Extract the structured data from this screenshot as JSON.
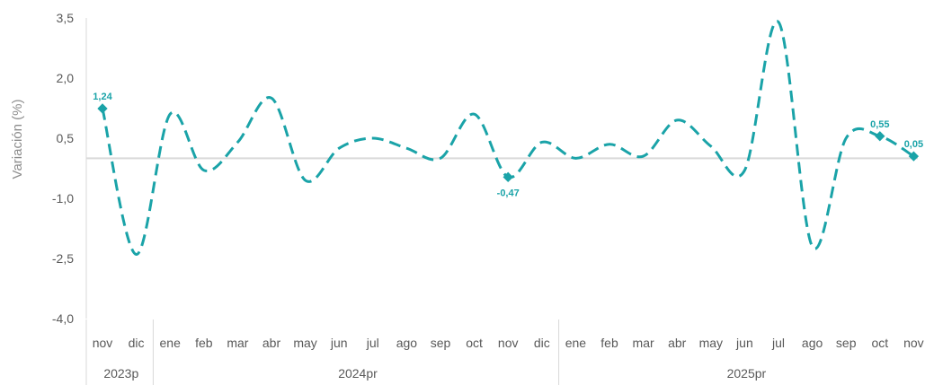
{
  "chart_data": {
    "type": "line",
    "ylabel": "Variación (%)",
    "ylim": [
      -4.0,
      3.5
    ],
    "yticks": [
      "-4,0",
      "-2,5",
      "-1,0",
      "0,5",
      "2,0",
      "3,5"
    ],
    "ytick_values": [
      -4.0,
      -2.5,
      -1.0,
      0.5,
      2.0,
      3.5
    ],
    "categories": [
      "nov",
      "dic",
      "ene",
      "feb",
      "mar",
      "abr",
      "may",
      "jun",
      "jul",
      "ago",
      "sep",
      "oct",
      "nov",
      "dic",
      "ene",
      "feb",
      "mar",
      "abr",
      "may",
      "jun",
      "jul",
      "ago",
      "sep",
      "oct",
      "nov"
    ],
    "year_groups": [
      {
        "label": "2023p",
        "count": 2
      },
      {
        "label": "2024pr",
        "count": 12
      },
      {
        "label": "2025pr",
        "count": 11
      }
    ],
    "series": [
      {
        "values": [
          1.24,
          -2.4,
          1.1,
          -0.3,
          0.4,
          1.5,
          -0.55,
          0.25,
          0.5,
          0.25,
          0.0,
          1.1,
          -0.47,
          0.4,
          0.0,
          0.35,
          0.05,
          0.95,
          0.3,
          -0.3,
          3.4,
          -2.2,
          0.5,
          0.55,
          0.05
        ],
        "color": "#1aa3a8",
        "style": "dashed"
      }
    ],
    "data_labels": [
      {
        "index": 0,
        "text": "1,24"
      },
      {
        "index": 12,
        "text": "-0,47"
      },
      {
        "index": 23,
        "text": "0,55"
      },
      {
        "index": 24,
        "text": "0,05"
      }
    ],
    "reference_line": 0.0,
    "grid": false,
    "legend": "none"
  }
}
